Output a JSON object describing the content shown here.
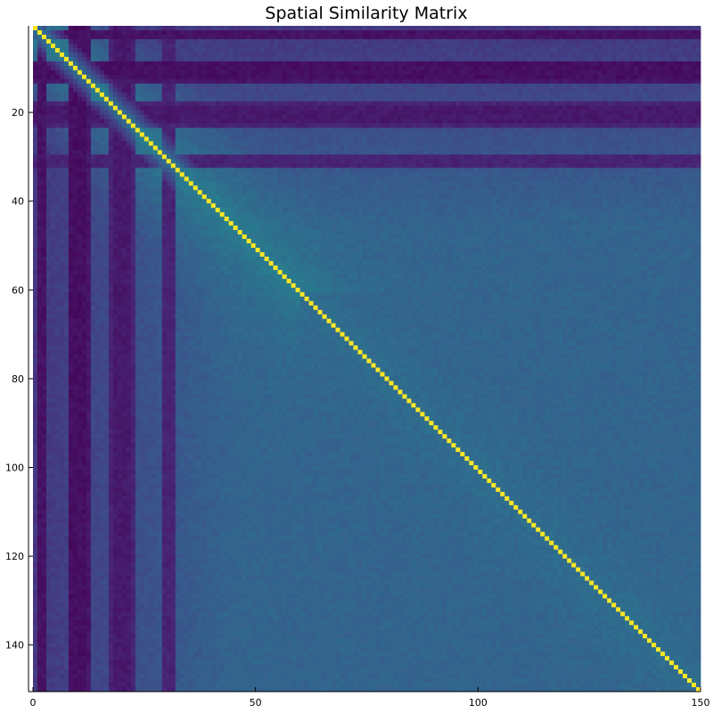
{
  "chart_data": {
    "type": "heatmap",
    "title": "Spatial Similarity Matrix",
    "xlabel": "",
    "ylabel": "",
    "matrix_size": 150,
    "xlim": [
      0,
      150
    ],
    "ylim": [
      150,
      0
    ],
    "x_ticks": [
      0,
      50,
      100,
      150
    ],
    "x_tick_labels": [
      "0",
      "50",
      "100",
      "150"
    ],
    "y_ticks": [
      20,
      40,
      60,
      80,
      100,
      120,
      140
    ],
    "y_tick_labels": [
      "20",
      "40",
      "60",
      "80",
      "100",
      "120",
      "140"
    ],
    "colormap": "viridis",
    "colorbar": false,
    "grid": false,
    "diagonal_value": 1.0,
    "background_value": 0.32,
    "dark_bands": [
      {
        "axis": "column",
        "from": 1,
        "to": 2,
        "value": 0.05
      },
      {
        "axis": "column",
        "from": 8,
        "to": 12,
        "value": 0.06
      },
      {
        "axis": "column",
        "from": 17,
        "to": 22,
        "value": 0.1
      },
      {
        "axis": "row",
        "from": 8,
        "to": 11,
        "value": 0.04
      },
      {
        "axis": "row",
        "from": 18,
        "to": 21,
        "value": 0.07
      },
      {
        "axis": "row",
        "from": 29,
        "to": 31,
        "value": 0.1
      }
    ],
    "colors": {
      "viridis_low": "#440154",
      "viridis_mid": "#21918c",
      "viridis_high": "#fde725"
    }
  }
}
